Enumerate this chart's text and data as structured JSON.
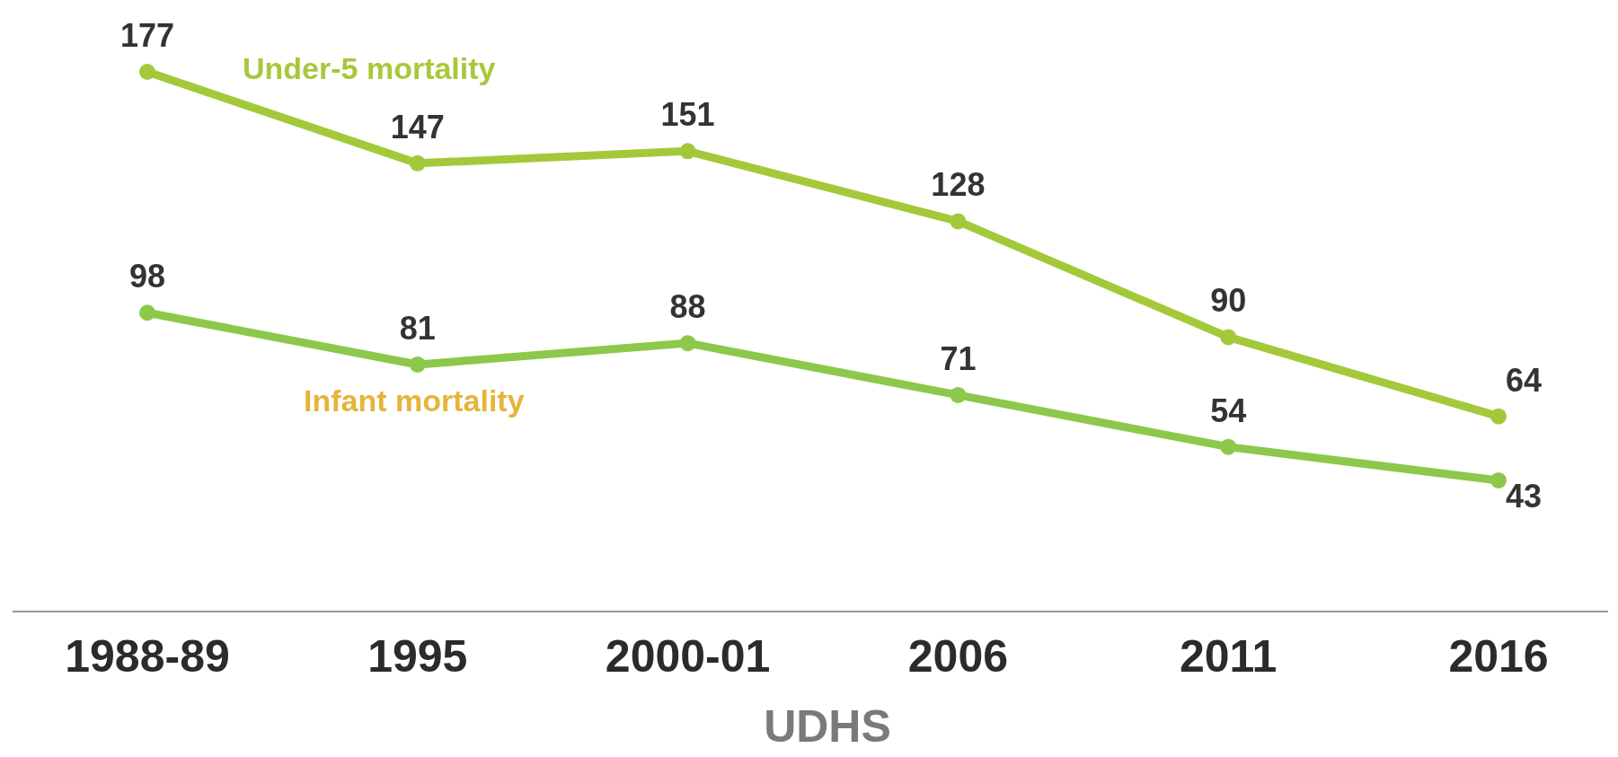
{
  "chart_data": {
    "type": "line",
    "xlabel": "UDHS",
    "categories": [
      "1988-89",
      "1995",
      "2000-01",
      "2006",
      "2011",
      "2016"
    ],
    "tick_labels": "x",
    "data_labels": true,
    "marker": "circle",
    "line_style": "solid",
    "series": [
      {
        "name": "Under-5 mortality",
        "color": "#a3c93a",
        "values": [
          177,
          147,
          151,
          128,
          90,
          64
        ]
      },
      {
        "name": "Infant mortality",
        "color": "#8cc84b",
        "values": [
          98,
          81,
          88,
          71,
          54,
          43
        ]
      }
    ]
  }
}
